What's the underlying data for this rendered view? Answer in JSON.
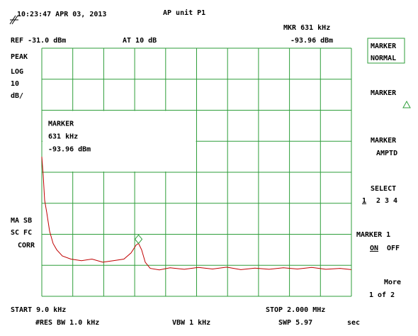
{
  "header": {
    "timestamp": "10:23:47 APR 03, 2013",
    "title": "AP unit P1",
    "ref": "REF -31.0  dBm",
    "atten": "AT 10  dB",
    "marker_readout": "MKR 631 kHz",
    "marker_level": "-93.96 dBm"
  },
  "left_labels": [
    "PEAK",
    "LOG",
    "10",
    "dB/",
    "MA SB",
    "SC FC",
    "CORR"
  ],
  "marker_box": [
    "MARKER",
    "631 kHz",
    "-93.96 dBm"
  ],
  "softkeys": {
    "normal": [
      "MARKER",
      "NORMAL"
    ],
    "delta": "MARKER",
    "amptd": [
      "MARKER",
      "AMPTD"
    ],
    "select": "SELECT",
    "select_options": [
      "1",
      "2",
      "3",
      "4"
    ],
    "marker1": "MARKER 1",
    "marker1_options": [
      "ON",
      "OFF"
    ],
    "more": [
      "More",
      "1 of 2"
    ]
  },
  "footer": {
    "start": "START 9.0  kHz",
    "stop": "STOP 2.000  MHz",
    "rbw": "#RES BW 1.0  kHz",
    "vbw": "VBW 1 kHz",
    "sweep": "SWP 5.97",
    "sweep_unit": "sec"
  },
  "chart_data": {
    "type": "line",
    "color": "#c00000",
    "grid_color": "#2e9e3a",
    "grid": true,
    "x": [
      9,
      18,
      27,
      41,
      59,
      82,
      105,
      141,
      196,
      264,
      332,
      401,
      469,
      537,
      583,
      615,
      631,
      651,
      674,
      706,
      765,
      834,
      925,
      1016,
      1107,
      1198,
      1289,
      1380,
      1471,
      1562,
      1653,
      1745,
      1836,
      1927,
      2000
    ],
    "values": [
      -66,
      -72,
      -80,
      -84,
      -90,
      -94,
      -96,
      -98,
      -99,
      -99.5,
      -99,
      -100,
      -99.5,
      -99,
      -97,
      -94.5,
      -93.96,
      -96,
      -100,
      -102,
      -102.5,
      -101.8,
      -102.3,
      -101.7,
      -102.2,
      -101.6,
      -102.4,
      -101.9,
      -102.3,
      -101.8,
      -102.2,
      -101.7,
      -102.3,
      -102,
      -102.4
    ],
    "xlim": [
      9,
      2000
    ],
    "ylim": [
      -111,
      -31
    ],
    "xticks": [
      9,
      208.1,
      407.2,
      606.3,
      805.4,
      1004.5,
      1203.6,
      1402.7,
      1601.8,
      1800.9,
      2000
    ],
    "yticks": [
      -31,
      -41,
      -51,
      -61,
      -71,
      -81,
      -91,
      -101,
      -111
    ],
    "marker": {
      "x": 631,
      "value": -93.96
    }
  }
}
